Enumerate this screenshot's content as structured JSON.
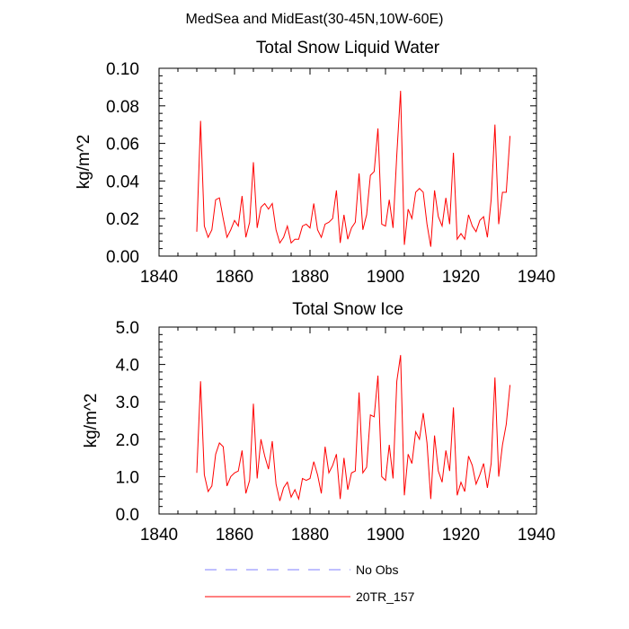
{
  "figure_title": "MedSea and MidEast(30-45N,10W-60E)",
  "chart_data": [
    {
      "type": "line",
      "title": "Total Snow Liquid Water",
      "xlabel": "",
      "ylabel": "kg/m^2",
      "xlim": [
        1840,
        1940
      ],
      "ylim": [
        0,
        0.1
      ],
      "x_ticks": [
        1840,
        1860,
        1880,
        1900,
        1920,
        1940
      ],
      "x_tick_labels": [
        "1840",
        "1860",
        "1880",
        "1900",
        "1920",
        "1940"
      ],
      "y_ticks": [
        0,
        0.02,
        0.04,
        0.06,
        0.08,
        0.1
      ],
      "y_tick_labels": [
        "0.00",
        "0.02",
        "0.04",
        "0.06",
        "0.08",
        "0.10"
      ],
      "x": [
        1850,
        1851,
        1852,
        1853,
        1854,
        1855,
        1856,
        1857,
        1858,
        1859,
        1860,
        1861,
        1862,
        1863,
        1864,
        1865,
        1866,
        1867,
        1868,
        1869,
        1870,
        1871,
        1872,
        1873,
        1874,
        1875,
        1876,
        1877,
        1878,
        1879,
        1880,
        1881,
        1882,
        1883,
        1884,
        1885,
        1886,
        1887,
        1888,
        1889,
        1890,
        1891,
        1892,
        1893,
        1894,
        1895,
        1896,
        1897,
        1898,
        1899,
        1900,
        1901,
        1902,
        1903,
        1904,
        1905,
        1906,
        1907,
        1908,
        1909,
        1910,
        1911,
        1912,
        1913,
        1914,
        1915,
        1916,
        1917,
        1918,
        1919,
        1920,
        1921,
        1922,
        1923,
        1924,
        1925,
        1926,
        1927,
        1928,
        1929,
        1930,
        1931,
        1932,
        1933
      ],
      "series": [
        {
          "name": "20TR_157",
          "color": "#ff0000",
          "values": [
            0.013,
            0.072,
            0.016,
            0.01,
            0.014,
            0.03,
            0.031,
            0.02,
            0.01,
            0.014,
            0.019,
            0.016,
            0.032,
            0.01,
            0.018,
            0.05,
            0.015,
            0.026,
            0.028,
            0.025,
            0.028,
            0.014,
            0.007,
            0.01,
            0.016,
            0.007,
            0.009,
            0.009,
            0.016,
            0.017,
            0.015,
            0.028,
            0.014,
            0.01,
            0.017,
            0.018,
            0.02,
            0.035,
            0.007,
            0.022,
            0.009,
            0.015,
            0.018,
            0.044,
            0.014,
            0.022,
            0.043,
            0.045,
            0.068,
            0.017,
            0.016,
            0.03,
            0.015,
            0.054,
            0.088,
            0.006,
            0.025,
            0.02,
            0.034,
            0.036,
            0.034,
            0.017,
            0.005,
            0.035,
            0.021,
            0.016,
            0.031,
            0.017,
            0.055,
            0.009,
            0.012,
            0.009,
            0.022,
            0.016,
            0.013,
            0.019,
            0.021,
            0.01,
            0.03,
            0.07,
            0.017,
            0.034,
            0.034,
            0.064
          ]
        }
      ]
    },
    {
      "type": "line",
      "title": "Total Snow Ice",
      "xlabel": "",
      "ylabel": "kg/m^2",
      "xlim": [
        1840,
        1940
      ],
      "ylim": [
        0,
        5
      ],
      "x_ticks": [
        1840,
        1860,
        1880,
        1900,
        1920,
        1940
      ],
      "x_tick_labels": [
        "1840",
        "1860",
        "1880",
        "1900",
        "1920",
        "1940"
      ],
      "y_ticks": [
        0,
        1,
        2,
        3,
        4,
        5
      ],
      "y_tick_labels": [
        "0.0",
        "1.0",
        "2.0",
        "3.0",
        "4.0",
        "5.0"
      ],
      "x": [
        1850,
        1851,
        1852,
        1853,
        1854,
        1855,
        1856,
        1857,
        1858,
        1859,
        1860,
        1861,
        1862,
        1863,
        1864,
        1865,
        1866,
        1867,
        1868,
        1869,
        1870,
        1871,
        1872,
        1873,
        1874,
        1875,
        1876,
        1877,
        1878,
        1879,
        1880,
        1881,
        1882,
        1883,
        1884,
        1885,
        1886,
        1887,
        1888,
        1889,
        1890,
        1891,
        1892,
        1893,
        1894,
        1895,
        1896,
        1897,
        1898,
        1899,
        1900,
        1901,
        1902,
        1903,
        1904,
        1905,
        1906,
        1907,
        1908,
        1909,
        1910,
        1911,
        1912,
        1913,
        1914,
        1915,
        1916,
        1917,
        1918,
        1919,
        1920,
        1921,
        1922,
        1923,
        1924,
        1925,
        1926,
        1927,
        1928,
        1929,
        1930,
        1931,
        1932,
        1933
      ],
      "series": [
        {
          "name": "20TR_157",
          "color": "#ff0000",
          "values": [
            1.1,
            3.55,
            1.05,
            0.6,
            0.75,
            1.6,
            1.9,
            1.8,
            0.75,
            1.0,
            1.1,
            1.15,
            1.7,
            0.55,
            0.9,
            2.95,
            0.95,
            2.0,
            1.55,
            1.2,
            1.95,
            0.8,
            0.35,
            0.7,
            0.85,
            0.45,
            0.65,
            0.4,
            0.95,
            0.9,
            0.95,
            1.4,
            1.05,
            0.55,
            1.8,
            1.1,
            1.3,
            1.6,
            0.4,
            1.5,
            0.65,
            1.1,
            1.15,
            3.25,
            1.1,
            1.25,
            2.65,
            2.6,
            3.7,
            1.0,
            0.9,
            1.85,
            0.95,
            3.55,
            4.25,
            0.5,
            1.6,
            1.35,
            2.2,
            2.0,
            2.7,
            1.9,
            0.4,
            2.1,
            1.15,
            0.85,
            1.7,
            1.15,
            2.85,
            0.5,
            0.85,
            0.6,
            1.55,
            1.3,
            0.8,
            1.05,
            1.35,
            0.7,
            1.35,
            3.65,
            1.0,
            1.85,
            2.4,
            3.45
          ]
        }
      ]
    }
  ],
  "legend": [
    {
      "label": "No Obs",
      "color": "#7f7fff",
      "style": "dashed"
    },
    {
      "label": "20TR_157",
      "color": "#ff0000",
      "style": "solid"
    }
  ]
}
